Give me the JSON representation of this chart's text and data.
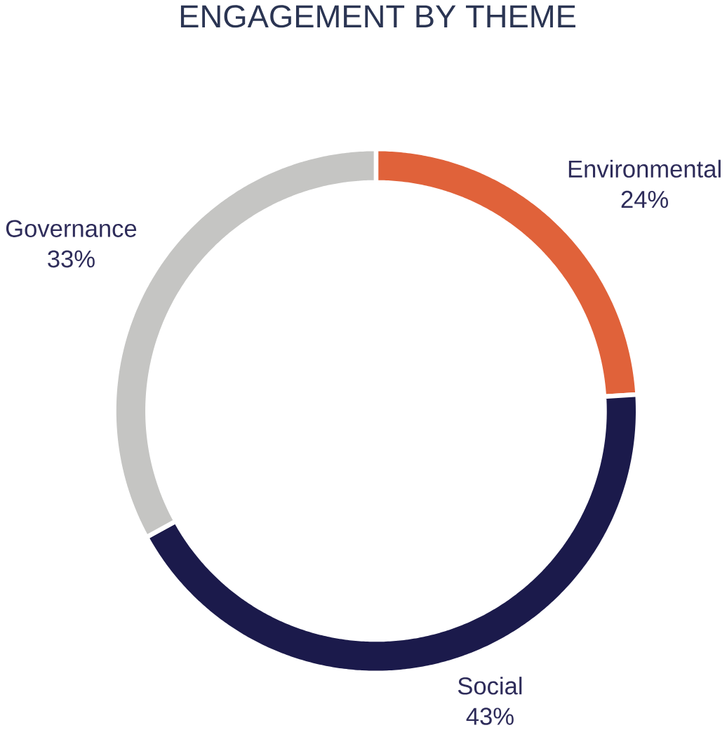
{
  "chart_data": {
    "type": "donut",
    "title": "ENGAGEMENT BY THEME",
    "categories": [
      "Environmental",
      "Social",
      "Governance"
    ],
    "values": [
      24,
      43,
      33
    ],
    "value_labels": [
      "24%",
      "43%",
      "33%"
    ],
    "colors": [
      "#e0623a",
      "#1b1a4b",
      "#c5c5c3"
    ]
  }
}
